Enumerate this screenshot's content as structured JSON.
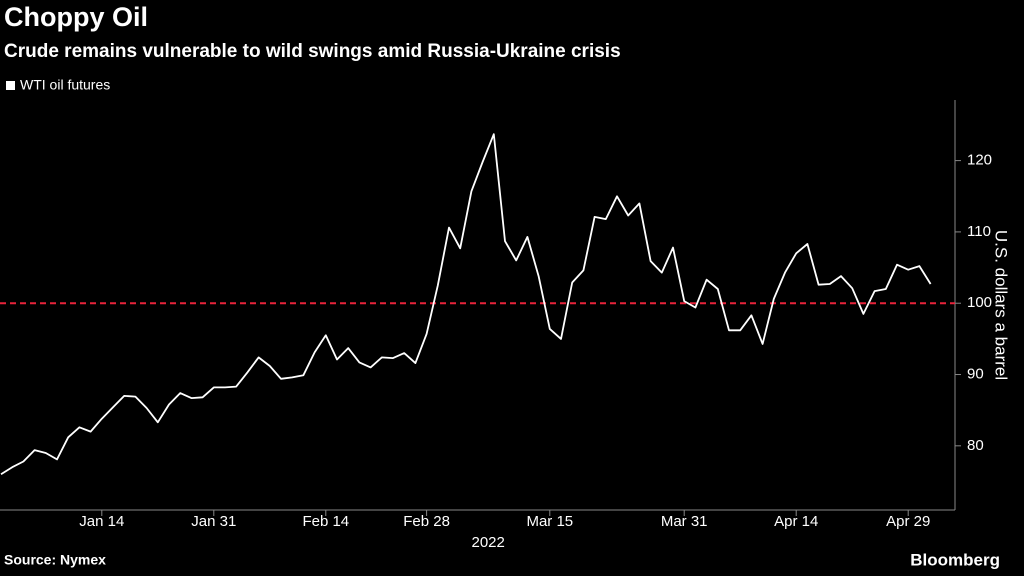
{
  "chart_data": {
    "type": "line",
    "title": "Choppy Oil",
    "subtitle": "Crude remains vulnerable to wild swings amid Russia-Ukraine crisis",
    "y_axis_label": "U.S. dollars a barrel",
    "x_axis_label": "2022",
    "source": "Source: Nymex",
    "brand": "Bloomberg",
    "categories": [
      null,
      null,
      null,
      null,
      null,
      null,
      null,
      null,
      null,
      "Jan 14",
      null,
      null,
      null,
      null,
      null,
      null,
      null,
      null,
      null,
      "Jan 31",
      null,
      null,
      null,
      null,
      null,
      null,
      null,
      null,
      null,
      "Feb 14",
      null,
      null,
      null,
      null,
      null,
      null,
      null,
      null,
      "Feb 28",
      null,
      null,
      null,
      null,
      null,
      null,
      null,
      null,
      null,
      null,
      "Mar 15",
      null,
      null,
      null,
      null,
      null,
      null,
      null,
      null,
      null,
      null,
      null,
      "Mar 31",
      null,
      null,
      null,
      null,
      null,
      null,
      null,
      null,
      null,
      "Apr 14",
      null,
      null,
      null,
      null,
      null,
      null,
      null,
      null,
      null,
      "Apr 29",
      null,
      null
    ],
    "series": [
      {
        "name": "WTI oil futures",
        "color": "#ffffff",
        "values": [
          76.0,
          77.0,
          77.8,
          79.4,
          79.0,
          78.1,
          81.2,
          82.6,
          82.0,
          83.8,
          85.4,
          87.0,
          86.9,
          85.3,
          83.3,
          85.8,
          87.4,
          86.7,
          86.8,
          88.2,
          88.2,
          88.3,
          90.3,
          92.4,
          91.2,
          89.4,
          89.6,
          89.9,
          93.1,
          95.5,
          92.1,
          93.7,
          91.7,
          91.0,
          92.4,
          92.3,
          93.0,
          91.6,
          95.7,
          102.5,
          110.6,
          107.7,
          115.7,
          119.8,
          123.7,
          108.7,
          106.0,
          109.3,
          103.8,
          96.4,
          95.0,
          102.9,
          104.6,
          112.1,
          111.8,
          115.0,
          112.3,
          114.0,
          105.9,
          104.3,
          107.8,
          100.3,
          99.4,
          103.3,
          102.0,
          96.2,
          96.2,
          98.3,
          94.3,
          100.6,
          104.3,
          107.0,
          108.3,
          102.6,
          102.7,
          103.8,
          102.1,
          98.5,
          101.7,
          102.0,
          105.4,
          104.7,
          105.2,
          102.7
        ]
      }
    ],
    "ylim": [
      71,
      128.5
    ],
    "yticks": [
      80,
      90,
      100,
      110,
      120
    ],
    "reference_line": {
      "value": 100,
      "color": "#e8233b"
    },
    "grid": false,
    "legend": "top-left"
  }
}
